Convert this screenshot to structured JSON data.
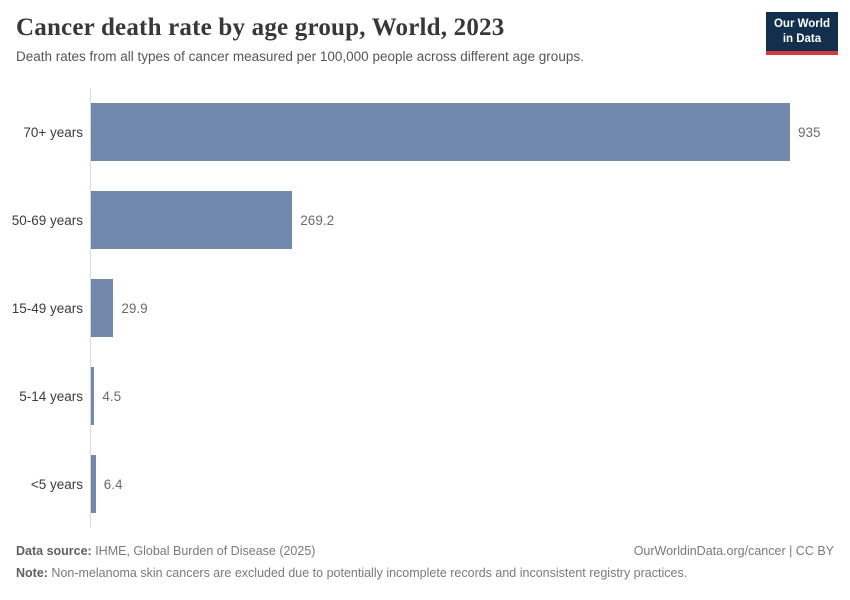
{
  "header": {
    "title": "Cancer death rate by age group, World, 2023",
    "subtitle": "Death rates from all types of cancer measured per 100,000 people across different age groups.",
    "logo": {
      "line1": "Our World",
      "line2": "in Data"
    }
  },
  "chart_data": {
    "type": "bar",
    "orientation": "horizontal",
    "title": "Cancer death rate by age group, World, 2023",
    "categories": [
      "70+ years",
      "50-69 years",
      "15-49 years",
      "5-14 years",
      "<5 years"
    ],
    "values": [
      935,
      269.2,
      29.9,
      4.5,
      6.4
    ],
    "value_labels": [
      "935",
      "269.2",
      "29.9",
      "4.5",
      "6.4"
    ],
    "xlabel": "",
    "ylabel": "",
    "xlim": [
      0,
      935
    ],
    "grid": false,
    "legend": false,
    "bar_color": "#7289ad",
    "axis_color": "#d9d9d9"
  },
  "footer": {
    "source_label": "Data source:",
    "source_text": " IHME, Global Burden of Disease (2025)",
    "link_text": "OurWorldinData.org/cancer | CC BY",
    "note_label": "Note:",
    "note_text": " Non-melanoma skin cancers are excluded due to potentially incomplete records and inconsistent registry practices."
  }
}
